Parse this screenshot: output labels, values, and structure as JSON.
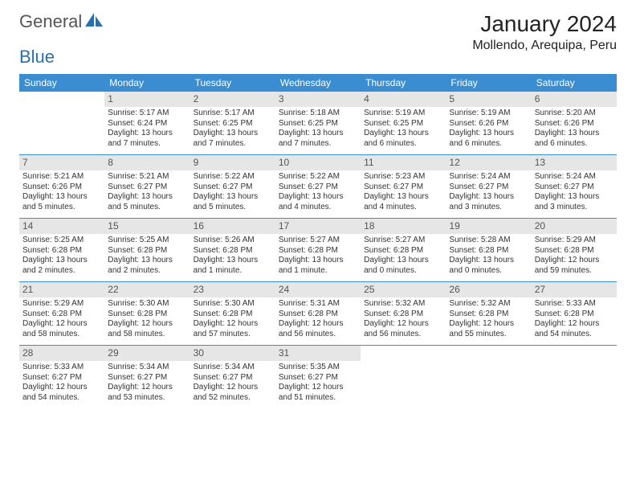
{
  "logo": {
    "text1": "General",
    "text2": "Blue",
    "icon_color": "#2a6fb0"
  },
  "title": {
    "month": "January 2024",
    "location": "Mollendo, Arequipa, Peru"
  },
  "colors": {
    "header_bg": "#3a8dd0",
    "daynum_bg": "#e6e6e6",
    "rule": "#3a8dd0"
  },
  "daynames": [
    "Sunday",
    "Monday",
    "Tuesday",
    "Wednesday",
    "Thursday",
    "Friday",
    "Saturday"
  ],
  "first_weekday": 1,
  "days": [
    {
      "n": 1,
      "sr": "5:17 AM",
      "ss": "6:24 PM",
      "dl": "13 hours and 7 minutes."
    },
    {
      "n": 2,
      "sr": "5:17 AM",
      "ss": "6:25 PM",
      "dl": "13 hours and 7 minutes."
    },
    {
      "n": 3,
      "sr": "5:18 AM",
      "ss": "6:25 PM",
      "dl": "13 hours and 7 minutes."
    },
    {
      "n": 4,
      "sr": "5:19 AM",
      "ss": "6:25 PM",
      "dl": "13 hours and 6 minutes."
    },
    {
      "n": 5,
      "sr": "5:19 AM",
      "ss": "6:26 PM",
      "dl": "13 hours and 6 minutes."
    },
    {
      "n": 6,
      "sr": "5:20 AM",
      "ss": "6:26 PM",
      "dl": "13 hours and 6 minutes."
    },
    {
      "n": 7,
      "sr": "5:21 AM",
      "ss": "6:26 PM",
      "dl": "13 hours and 5 minutes."
    },
    {
      "n": 8,
      "sr": "5:21 AM",
      "ss": "6:27 PM",
      "dl": "13 hours and 5 minutes."
    },
    {
      "n": 9,
      "sr": "5:22 AM",
      "ss": "6:27 PM",
      "dl": "13 hours and 5 minutes."
    },
    {
      "n": 10,
      "sr": "5:22 AM",
      "ss": "6:27 PM",
      "dl": "13 hours and 4 minutes."
    },
    {
      "n": 11,
      "sr": "5:23 AM",
      "ss": "6:27 PM",
      "dl": "13 hours and 4 minutes."
    },
    {
      "n": 12,
      "sr": "5:24 AM",
      "ss": "6:27 PM",
      "dl": "13 hours and 3 minutes."
    },
    {
      "n": 13,
      "sr": "5:24 AM",
      "ss": "6:27 PM",
      "dl": "13 hours and 3 minutes."
    },
    {
      "n": 14,
      "sr": "5:25 AM",
      "ss": "6:28 PM",
      "dl": "13 hours and 2 minutes."
    },
    {
      "n": 15,
      "sr": "5:25 AM",
      "ss": "6:28 PM",
      "dl": "13 hours and 2 minutes."
    },
    {
      "n": 16,
      "sr": "5:26 AM",
      "ss": "6:28 PM",
      "dl": "13 hours and 1 minute."
    },
    {
      "n": 17,
      "sr": "5:27 AM",
      "ss": "6:28 PM",
      "dl": "13 hours and 1 minute."
    },
    {
      "n": 18,
      "sr": "5:27 AM",
      "ss": "6:28 PM",
      "dl": "13 hours and 0 minutes."
    },
    {
      "n": 19,
      "sr": "5:28 AM",
      "ss": "6:28 PM",
      "dl": "13 hours and 0 minutes."
    },
    {
      "n": 20,
      "sr": "5:29 AM",
      "ss": "6:28 PM",
      "dl": "12 hours and 59 minutes."
    },
    {
      "n": 21,
      "sr": "5:29 AM",
      "ss": "6:28 PM",
      "dl": "12 hours and 58 minutes."
    },
    {
      "n": 22,
      "sr": "5:30 AM",
      "ss": "6:28 PM",
      "dl": "12 hours and 58 minutes."
    },
    {
      "n": 23,
      "sr": "5:30 AM",
      "ss": "6:28 PM",
      "dl": "12 hours and 57 minutes."
    },
    {
      "n": 24,
      "sr": "5:31 AM",
      "ss": "6:28 PM",
      "dl": "12 hours and 56 minutes."
    },
    {
      "n": 25,
      "sr": "5:32 AM",
      "ss": "6:28 PM",
      "dl": "12 hours and 56 minutes."
    },
    {
      "n": 26,
      "sr": "5:32 AM",
      "ss": "6:28 PM",
      "dl": "12 hours and 55 minutes."
    },
    {
      "n": 27,
      "sr": "5:33 AM",
      "ss": "6:28 PM",
      "dl": "12 hours and 54 minutes."
    },
    {
      "n": 28,
      "sr": "5:33 AM",
      "ss": "6:27 PM",
      "dl": "12 hours and 54 minutes."
    },
    {
      "n": 29,
      "sr": "5:34 AM",
      "ss": "6:27 PM",
      "dl": "12 hours and 53 minutes."
    },
    {
      "n": 30,
      "sr": "5:34 AM",
      "ss": "6:27 PM",
      "dl": "12 hours and 52 minutes."
    },
    {
      "n": 31,
      "sr": "5:35 AM",
      "ss": "6:27 PM",
      "dl": "12 hours and 51 minutes."
    }
  ],
  "labels": {
    "sunrise": "Sunrise:",
    "sunset": "Sunset:",
    "daylight": "Daylight:"
  }
}
